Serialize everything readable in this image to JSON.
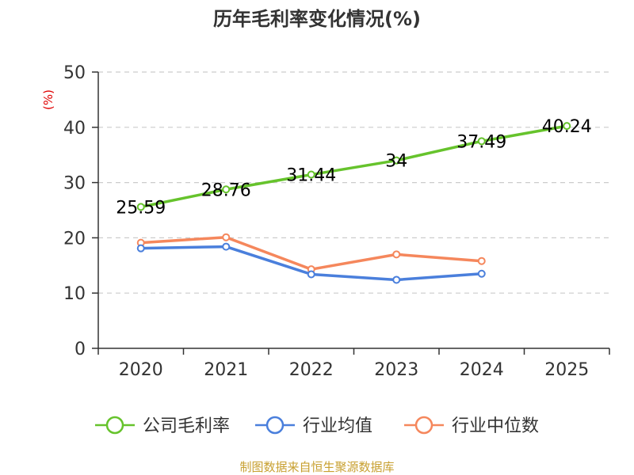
{
  "colors": {
    "axis": "#333333",
    "grid": "#cccccc",
    "ylabel": "#e00000",
    "source": "#c8a030"
  },
  "chart_data": {
    "type": "line",
    "title": "历年毛利率变化情况(%)",
    "ylabel": "(%)",
    "xlabel": "",
    "categories": [
      "2020",
      "2021",
      "2022",
      "2023",
      "2024",
      "2025"
    ],
    "yticks": [
      "0",
      "10",
      "20",
      "30",
      "40",
      "50"
    ],
    "ylim": [
      0,
      50
    ],
    "grid": true,
    "legend_position": "bottom",
    "series": [
      {
        "name": "公司毛利率",
        "color": "#66c32c",
        "values": [
          25.59,
          28.76,
          31.44,
          34,
          37.49,
          40.24
        ],
        "labels": [
          "25.59",
          "28.76",
          "31.44",
          "34",
          "37.49",
          "40.24"
        ],
        "show_labels": true
      },
      {
        "name": "行业均值",
        "color": "#4a7fdc",
        "values": [
          18.1,
          18.4,
          13.4,
          12.4,
          13.5,
          null
        ],
        "show_labels": false
      },
      {
        "name": "行业中位数",
        "color": "#f5875c",
        "values": [
          19.1,
          20.1,
          14.3,
          17.0,
          15.8,
          null
        ],
        "show_labels": false
      }
    ]
  },
  "source_text": "制图数据来自恒生聚源数据库"
}
